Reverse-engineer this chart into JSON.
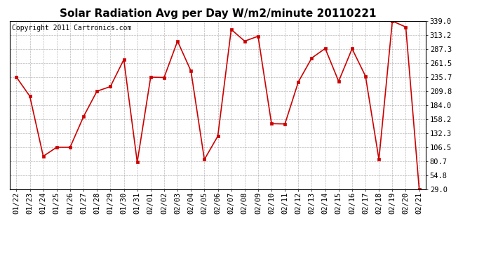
{
  "title": "Solar Radiation Avg per Day W/m2/minute 20110221",
  "copyright": "Copyright 2011 Cartronics.com",
  "labels": [
    "01/22",
    "01/23",
    "01/24",
    "01/25",
    "01/26",
    "01/27",
    "01/28",
    "01/29",
    "01/30",
    "01/31",
    "02/01",
    "02/02",
    "02/03",
    "02/04",
    "02/05",
    "02/06",
    "02/07",
    "02/08",
    "02/09",
    "02/10",
    "02/11",
    "02/12",
    "02/13",
    "02/14",
    "02/15",
    "02/16",
    "02/17",
    "02/18",
    "02/19",
    "02/20",
    "02/21"
  ],
  "values": [
    235.7,
    200.5,
    90.0,
    106.5,
    106.5,
    163.0,
    209.8,
    218.3,
    268.0,
    79.0,
    235.7,
    235.0,
    302.0,
    247.0,
    84.0,
    127.0,
    323.5,
    302.0,
    311.0,
    150.0,
    149.5,
    227.0,
    271.0,
    288.5,
    228.0,
    288.0,
    237.5,
    84.0,
    339.0,
    328.0,
    29.0
  ],
  "line_color": "#cc0000",
  "marker": "s",
  "marker_size": 3,
  "ylim": [
    29.0,
    339.0
  ],
  "yticks": [
    339.0,
    313.2,
    287.3,
    261.5,
    235.7,
    209.8,
    184.0,
    158.2,
    132.3,
    106.5,
    80.7,
    54.8,
    29.0
  ],
  "bg_color": "#ffffff",
  "grid_color": "#999999",
  "title_fontsize": 11,
  "copyright_fontsize": 7,
  "tick_fontsize": 7.5,
  "fig_width": 6.9,
  "fig_height": 3.75,
  "dpi": 100
}
